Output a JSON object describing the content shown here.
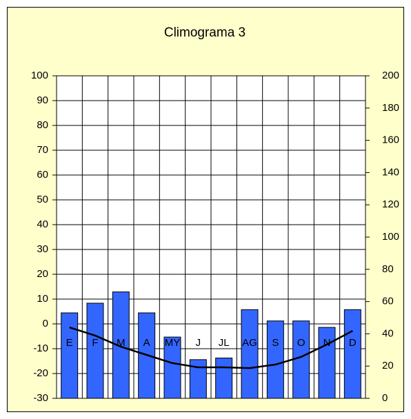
{
  "chart_data": {
    "type": "bar",
    "title": "Climograma 3",
    "categories": [
      "E",
      "F",
      "M",
      "A",
      "MY",
      "J",
      "JL",
      "AG",
      "S",
      "O",
      "N",
      "D"
    ],
    "series": [
      {
        "type": "bar",
        "axis": "y2",
        "color": "#3366ff",
        "values": [
          53,
          59,
          66,
          53,
          38,
          24,
          25,
          55,
          48,
          48,
          44,
          55
        ]
      },
      {
        "type": "line",
        "axis": "y",
        "color": "#000000",
        "values": [
          -1.4,
          -4.7,
          -9.2,
          -12.5,
          -15.8,
          -17.5,
          -17.5,
          -17.8,
          -16.4,
          -13.3,
          -8.3,
          -2.8
        ]
      }
    ],
    "ylim": [
      -30,
      100
    ],
    "yticks": [
      -30,
      -20,
      -10,
      0,
      10,
      20,
      30,
      40,
      50,
      60,
      70,
      80,
      90,
      100
    ],
    "y2lim": [
      0,
      200
    ],
    "y2ticks": [
      0,
      20,
      40,
      60,
      80,
      100,
      120,
      140,
      160,
      180,
      200
    ],
    "grid": true
  }
}
